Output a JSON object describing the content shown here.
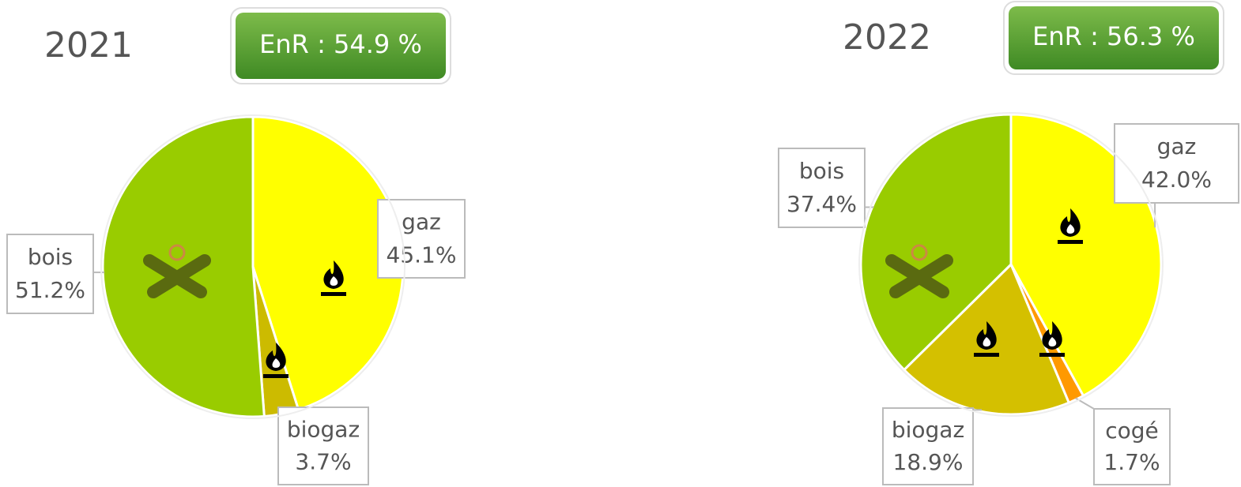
{
  "chart_data": [
    {
      "type": "pie",
      "title": "2021",
      "annotation": "EnR : 54.9 %",
      "categories": [
        "gaz",
        "biogaz",
        "bois"
      ],
      "values": [
        45.1,
        3.7,
        51.2
      ],
      "value_labels": [
        "45.1%",
        "3.7%",
        "51.2%"
      ],
      "colors": [
        "#ffff00",
        "#ccbb00",
        "#99cc00"
      ]
    },
    {
      "type": "pie",
      "title": "2022",
      "annotation": "EnR : 56.3 %",
      "categories": [
        "gaz",
        "cogé",
        "biogaz",
        "bois"
      ],
      "values": [
        42.0,
        1.7,
        18.9,
        37.4
      ],
      "value_labels": [
        "42.0%",
        "1.7%",
        "18.9%",
        "37.4%"
      ],
      "colors": [
        "#ffff00",
        "#ff9900",
        "#d4c000",
        "#99cc00"
      ]
    }
  ]
}
